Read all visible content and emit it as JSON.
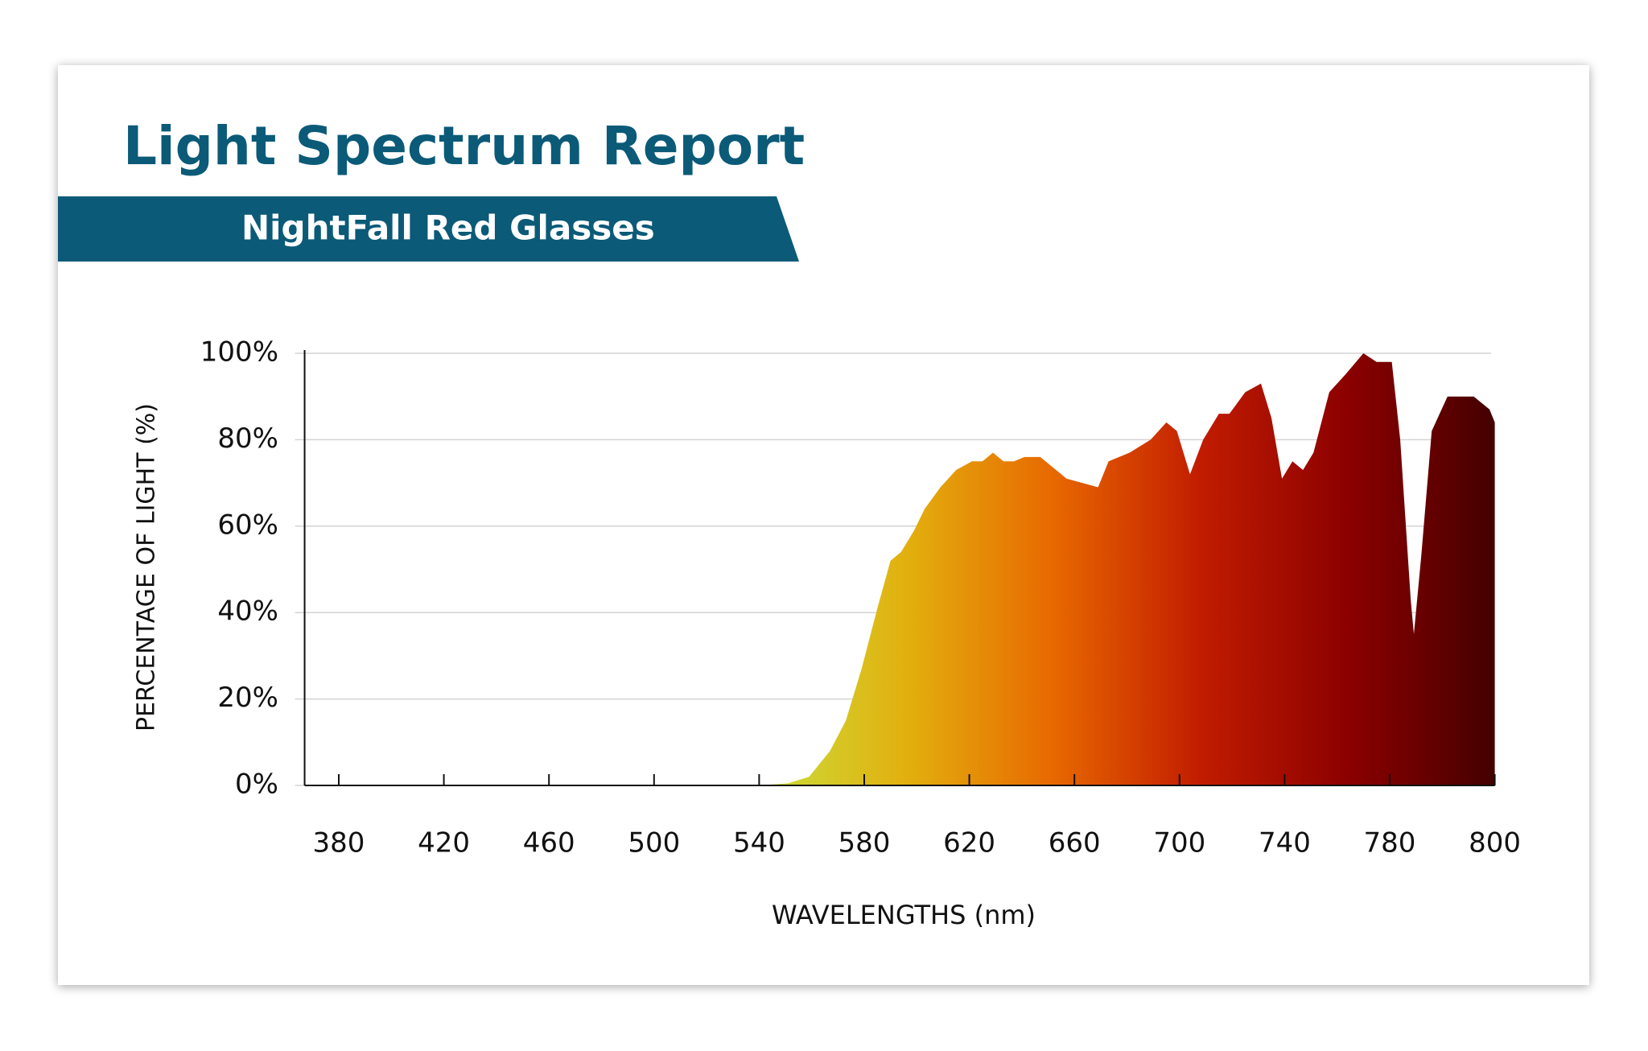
{
  "chart_data": {
    "type": "area",
    "title": "Light Spectrum Report",
    "subtitle": "NightFall Red Glasses",
    "x_label": "WAVELENGTHS (nm)",
    "y_label": "PERCENTAGE OF LIGHT (%)",
    "x": [
      540,
      551,
      559,
      567,
      573,
      579,
      585,
      590,
      594,
      599,
      603,
      609,
      615,
      621,
      625,
      629,
      633,
      637,
      641,
      647,
      653,
      657,
      663,
      669,
      673,
      681,
      689,
      695,
      699,
      704,
      709,
      715,
      719,
      725,
      731,
      735,
      739,
      743,
      747,
      751,
      757,
      763,
      770,
      775,
      780.4,
      782,
      784,
      784.6,
      786,
      788,
      791,
      796,
      799,
      800
    ],
    "values": [
      0,
      0.5,
      2,
      8,
      15,
      27,
      41,
      52,
      54,
      59,
      64,
      69,
      73,
      75,
      75,
      77,
      75,
      75,
      76,
      76,
      73,
      71,
      70,
      69,
      75,
      77,
      80,
      84,
      82,
      72,
      80,
      86,
      86,
      91,
      93,
      85,
      71,
      75,
      73,
      77,
      91,
      95,
      100,
      98,
      98,
      80,
      43,
      35,
      53,
      82,
      90,
      90,
      87,
      84
    ],
    "gradient": [
      "#c9de3c",
      "#e2b00e",
      "#e86800",
      "#c21c00",
      "#8c0000",
      "#440000"
    ],
    "xlim": [
      367,
      800
    ],
    "xticks": [
      380,
      420,
      460,
      500,
      540,
      580,
      620,
      660,
      700,
      740,
      780,
      800
    ],
    "ylim": [
      0,
      100
    ],
    "yticks": [
      {
        "value": 0,
        "label": "0%"
      },
      {
        "value": 20,
        "label": "20%"
      },
      {
        "value": 40,
        "label": "40%"
      },
      {
        "value": 60,
        "label": "60%"
      },
      {
        "value": 80,
        "label": "80%"
      },
      {
        "value": 100,
        "label": "100%"
      }
    ],
    "grid": true
  }
}
